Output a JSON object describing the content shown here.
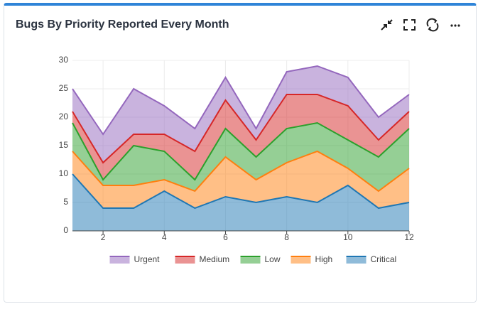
{
  "chart_data": {
    "type": "stacked_area",
    "title": "Bugs By Priority Reported Every Month",
    "x": [
      1,
      2,
      3,
      4,
      5,
      6,
      7,
      8,
      9,
      10,
      11,
      12
    ],
    "series": [
      {
        "name": "Critical",
        "color": "#1f77b4",
        "values": [
          10,
          4,
          4,
          7,
          4,
          6,
          5,
          6,
          5,
          8,
          4,
          5
        ]
      },
      {
        "name": "High",
        "color": "#ff7f0e",
        "values": [
          4,
          4,
          4,
          2,
          3,
          7,
          4,
          6,
          9,
          3,
          3,
          6
        ]
      },
      {
        "name": "Low",
        "color": "#2ca02c",
        "values": [
          5,
          1,
          7,
          5,
          2,
          5,
          4,
          6,
          5,
          5,
          6,
          7
        ]
      },
      {
        "name": "Medium",
        "color": "#d62728",
        "values": [
          2,
          3,
          2,
          3,
          5,
          5,
          3,
          6,
          5,
          6,
          3,
          3
        ]
      },
      {
        "name": "Urgent",
        "color": "#9467bd",
        "values": [
          4,
          5,
          8,
          5,
          4,
          4,
          2,
          4,
          5,
          5,
          4,
          3
        ]
      }
    ],
    "xlim": [
      1,
      12
    ],
    "xticks": [
      2,
      4,
      6,
      8,
      10,
      12
    ],
    "ylim": [
      0,
      30
    ],
    "yticks": [
      0,
      5,
      10,
      15,
      20,
      25,
      30
    ],
    "grid": true,
    "legend": "bottom"
  }
}
